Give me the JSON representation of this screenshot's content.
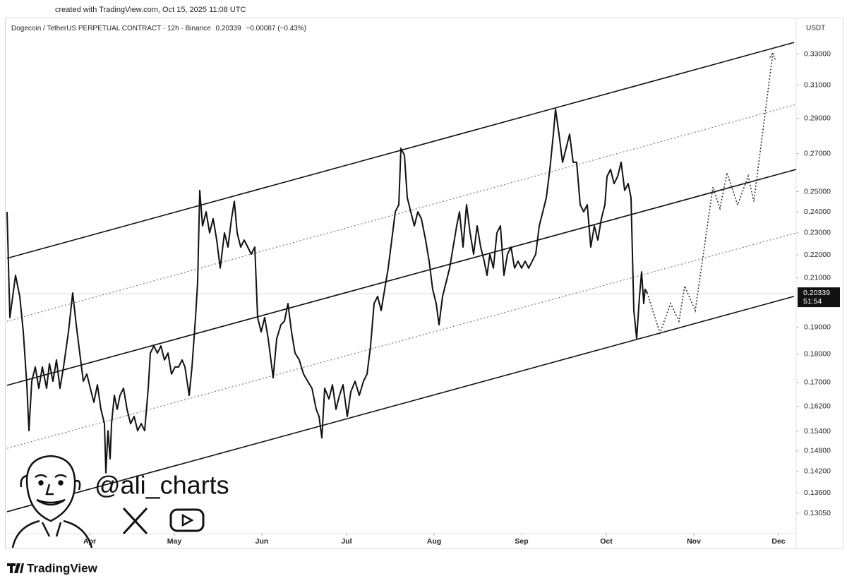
{
  "chart_data": {
    "type": "line",
    "created": "created with TradingView.com, Oct 15, 2025 11:08 UTC",
    "title": "Dogecoin / TetherUS PERPETUAL CONTRACT · 12h · Binance",
    "last_price": 0.20339,
    "change": "−0.00087 (−0.43%)",
    "countdown": "51:54",
    "currency": "USDT",
    "watermark": "@ali_charts",
    "brand": "TradingView",
    "color": "#111111",
    "log_scale": true,
    "grid": false,
    "xlim": [
      -29.25,
      250.25
    ],
    "xticks": [
      {
        "value": 0,
        "label": "Apr"
      },
      {
        "value": 30,
        "label": "May"
      },
      {
        "value": 61,
        "label": "Jun"
      },
      {
        "value": 91,
        "label": "Jul"
      },
      {
        "value": 122,
        "label": "Aug"
      },
      {
        "value": 153,
        "label": "Sep"
      },
      {
        "value": 183,
        "label": "Oct"
      },
      {
        "value": 214,
        "label": "Nov"
      },
      {
        "value": 244,
        "label": "Dec"
      }
    ],
    "ylim": [
      0.1254,
      0.3405
    ],
    "yticks": [
      {
        "value": 0.33,
        "label": "0.33000"
      },
      {
        "value": 0.31,
        "label": "0.31000"
      },
      {
        "value": 0.29,
        "label": "0.29000"
      },
      {
        "value": 0.27,
        "label": "0.27000"
      },
      {
        "value": 0.25,
        "label": "0.25000"
      },
      {
        "value": 0.24,
        "label": "0.24000"
      },
      {
        "value": 0.23,
        "label": "0.23000"
      },
      {
        "value": 0.22,
        "label": "0.22000"
      },
      {
        "value": 0.21,
        "label": "0.21000"
      },
      {
        "value": 0.19,
        "label": "0.19000"
      },
      {
        "value": 0.18,
        "label": "0.18000"
      },
      {
        "value": 0.17,
        "label": "0.17000"
      },
      {
        "value": 0.162,
        "label": "0.16200"
      },
      {
        "value": 0.154,
        "label": "0.15400"
      },
      {
        "value": 0.148,
        "label": "0.14800"
      },
      {
        "value": 0.142,
        "label": "0.14200"
      },
      {
        "value": 0.136,
        "label": "0.13600"
      },
      {
        "value": 0.1305,
        "label": "0.13050"
      }
    ],
    "x": [
      -29.25,
      -28.25,
      -26.25,
      -24.75,
      -23.5,
      -22.25,
      -21.5,
      -20.5,
      -19.25,
      -18,
      -16.75,
      -15.25,
      -14.25,
      -13,
      -11.75,
      -10.5,
      -9.25,
      -7.5,
      -6,
      -4.75,
      -3.5,
      -2.25,
      -1,
      0.25,
      1.5,
      2.75,
      4,
      5.25,
      5.75,
      6.5,
      7.25,
      7.75,
      8.75,
      9.75,
      10.75,
      12,
      13.25,
      14.5,
      15.75,
      17,
      18.25,
      19.5,
      20.75,
      21.5,
      22.75,
      24,
      25.25,
      26.5,
      27.75,
      29,
      30.25,
      31.5,
      32.75,
      33.75,
      35.25,
      36.25,
      37.5,
      38.25,
      39,
      40,
      41.25,
      42.5,
      43.75,
      45,
      46.25,
      47.75,
      49,
      50.25,
      51.25,
      52.25,
      53.5,
      54.75,
      56,
      57.25,
      58.5,
      59.5,
      60.75,
      62,
      63.25,
      65,
      66.25,
      67.75,
      69,
      70.25,
      71.5,
      72.75,
      74.25,
      75.75,
      77.25,
      78.75,
      80.25,
      81.25,
      82.25,
      83.25,
      84.75,
      86,
      87.25,
      88.5,
      89.75,
      91.25,
      92.5,
      94,
      95.5,
      97,
      98.25,
      99.5,
      100.75,
      102,
      103.25,
      104.5,
      105.75,
      107,
      108.25,
      109.5,
      110.25,
      111.5,
      112.5,
      113.75,
      115,
      116.25,
      117.5,
      119,
      120.25,
      121.5,
      122.75,
      123.75,
      125,
      126.25,
      127.5,
      128.75,
      130,
      131,
      132.25,
      133.5,
      134.75,
      136,
      137.25,
      138.5,
      139.75,
      140.75,
      141.75,
      143,
      144.25,
      145.5,
      146.75,
      148,
      149.25,
      150.5,
      151.75,
      153,
      154.25,
      155.5,
      156.75,
      158,
      159.25,
      160.5,
      161.75,
      163,
      164.25,
      165,
      166.25,
      167.5,
      168.75,
      170,
      171.25,
      172.5,
      173.75,
      175,
      176.25,
      177.5,
      178.75,
      180,
      181.25,
      182.5,
      183.25,
      184.5,
      185.75,
      187,
      188.25,
      189.5,
      190.75,
      191.75,
      192.75,
      193.75,
      194.75,
      195.5,
      196.25,
      196.75,
      197.5
    ],
    "values": [
      0.24,
      0.1938,
      0.2111,
      0.2023,
      0.1883,
      0.1692,
      0.1542,
      0.1704,
      0.1754,
      0.168,
      0.1754,
      0.168,
      0.1766,
      0.1704,
      0.1779,
      0.168,
      0.1754,
      0.1883,
      0.2037,
      0.191,
      0.1804,
      0.1704,
      0.1729,
      0.168,
      0.1633,
      0.1692,
      0.161,
      0.1564,
      0.1416,
      0.1542,
      0.1457,
      0.1564,
      0.1656,
      0.161,
      0.1656,
      0.168,
      0.161,
      0.1564,
      0.1587,
      0.1542,
      0.1564,
      0.1542,
      0.168,
      0.1804,
      0.183,
      0.1804,
      0.183,
      0.1779,
      0.1804,
      0.1729,
      0.1754,
      0.1754,
      0.1779,
      0.1754,
      0.1656,
      0.1754,
      0.1938,
      0.2081,
      0.2506,
      0.2333,
      0.24,
      0.23,
      0.2367,
      0.2267,
      0.2142,
      0.23,
      0.2235,
      0.2367,
      0.2452,
      0.23,
      0.2235,
      0.2267,
      0.2235,
      0.2203,
      0.2235,
      0.1938,
      0.1883,
      0.1938,
      0.1857,
      0.1716,
      0.1857,
      0.191,
      0.1924,
      0.1994,
      0.1883,
      0.1804,
      0.1779,
      0.1729,
      0.1704,
      0.168,
      0.161,
      0.1587,
      0.152,
      0.168,
      0.1644,
      0.1692,
      0.161,
      0.1656,
      0.1692,
      0.1587,
      0.1668,
      0.1704,
      0.1656,
      0.1704,
      0.1729,
      0.183,
      0.1994,
      0.2023,
      0.1966,
      0.2052,
      0.2142,
      0.2267,
      0.24,
      0.2435,
      0.2729,
      0.2691,
      0.247,
      0.24,
      0.2333,
      0.24,
      0.2367,
      0.2267,
      0.2172,
      0.2052,
      0.1994,
      0.191,
      0.2023,
      0.2081,
      0.2142,
      0.2235,
      0.2333,
      0.24,
      0.2235,
      0.2435,
      0.23,
      0.2203,
      0.2333,
      0.2235,
      0.2172,
      0.2111,
      0.2203,
      0.2142,
      0.23,
      0.2333,
      0.2111,
      0.2203,
      0.2235,
      0.2142,
      0.2172,
      0.2142,
      0.2172,
      0.2142,
      0.2172,
      0.2203,
      0.2333,
      0.24,
      0.247,
      0.2615,
      0.2808,
      0.2953,
      0.2808,
      0.2653,
      0.2729,
      0.2808,
      0.2653,
      0.2653,
      0.2435,
      0.24,
      0.2435,
      0.2235,
      0.2333,
      0.2267,
      0.2367,
      0.2435,
      0.2578,
      0.2615,
      0.2541,
      0.2578,
      0.2653,
      0.2506,
      0.2541,
      0.247,
      0.1966,
      0.1857,
      0.2023,
      0.2126,
      0.1994,
      0.2052,
      0.2037
    ],
    "projection": {
      "x": [
        197.5,
        202,
        205.75,
        208.75,
        210.75,
        214.5,
        220.75,
        223.25,
        225.75,
        229.5,
        233.25,
        235.25,
        242
      ],
      "values": [
        0.2037,
        0.1878,
        0.1994,
        0.1924,
        0.2066,
        0.1965,
        0.2523,
        0.2417,
        0.2597,
        0.2434,
        0.258,
        0.2451,
        0.331
      ]
    },
    "channels": [
      {
        "style": "solid",
        "x": [
          -29.25,
          249.5
        ],
        "values": [
          0.2185,
          0.338
        ]
      },
      {
        "style": "solid",
        "x": [
          -29.25,
          250.25
        ],
        "values": [
          0.169,
          0.2615
        ]
      },
      {
        "style": "solid",
        "x": [
          -29.25,
          249.5
        ],
        "values": [
          0.1309,
          0.2023
        ]
      },
      {
        "style": "dotted",
        "x": [
          -29.25,
          250.25
        ],
        "values": [
          0.1924,
          0.2982
        ]
      },
      {
        "style": "dotted",
        "x": [
          -29.25,
          250.25
        ],
        "values": [
          0.1488,
          0.23
        ]
      }
    ]
  }
}
